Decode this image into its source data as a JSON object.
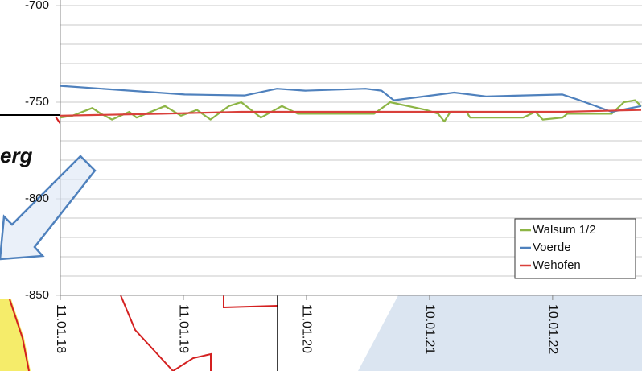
{
  "chart_data": {
    "type": "line",
    "xlim": [
      2018.03,
      2022.75
    ],
    "xticks": [
      {
        "value": 2018.03,
        "label": "11.01.18"
      },
      {
        "value": 2019.03,
        "label": "11.01.19"
      },
      {
        "value": 2020.03,
        "label": "11.01.20"
      },
      {
        "value": 2021.03,
        "label": "10.01.21"
      },
      {
        "value": 2022.03,
        "label": "10.01.22"
      }
    ],
    "ylim": [
      -850,
      -700
    ],
    "yticks": [
      -700,
      -750,
      -800,
      -850
    ],
    "minor_yticks": [
      -710,
      -720,
      -730,
      -740,
      -760,
      -770,
      -780,
      -790,
      -810,
      -820,
      -830,
      -840
    ],
    "grid": true,
    "legend": "lower right",
    "series": [
      {
        "name": "Walsum 1/2",
        "color": "#8db545",
        "x": [
          2018.03,
          2018.13,
          2018.29,
          2018.36,
          2018.45,
          2018.59,
          2018.65,
          2018.88,
          2019.01,
          2019.14,
          2019.25,
          2019.4,
          2019.5,
          2019.66,
          2019.83,
          2019.96,
          2020.09,
          2020.58,
          2020.71,
          2021.0,
          2021.1,
          2021.15,
          2021.2,
          2021.33,
          2021.36,
          2021.79,
          2021.89,
          2021.95,
          2022.11,
          2022.15,
          2022.51,
          2022.61,
          2022.7,
          2022.75
        ],
        "values": [
          -758,
          -757,
          -753,
          -756,
          -759,
          -755,
          -758,
          -752,
          -757,
          -754,
          -759,
          -752,
          -750,
          -758,
          -752,
          -756,
          -756,
          -756,
          -750,
          -754,
          -756,
          -760,
          -755,
          -755,
          -758,
          -758,
          -755,
          -759,
          -758,
          -756,
          -756,
          -750,
          -749,
          -752
        ]
      },
      {
        "name": "Voerde",
        "color": "#4f81bd",
        "x": [
          2018.03,
          2019.04,
          2019.53,
          2019.79,
          2020.02,
          2020.51,
          2020.64,
          2020.74,
          2021.23,
          2021.49,
          2022.11,
          2022.25,
          2022.51,
          2022.75
        ],
        "values": [
          -741.5,
          -746,
          -746.5,
          -743,
          -744,
          -743,
          -744,
          -749,
          -745,
          -747,
          -746,
          -749,
          -755,
          -752
        ]
      },
      {
        "name": "Wehofen",
        "color": "#d9403b",
        "x": [
          2018.03,
          2018.85,
          2019.5,
          2020.81,
          2021.46,
          2022.11,
          2022.75
        ],
        "values": [
          -757,
          -756,
          -755,
          -755,
          -755,
          -755,
          -754
        ]
      }
    ]
  },
  "overlay_text": "erg"
}
